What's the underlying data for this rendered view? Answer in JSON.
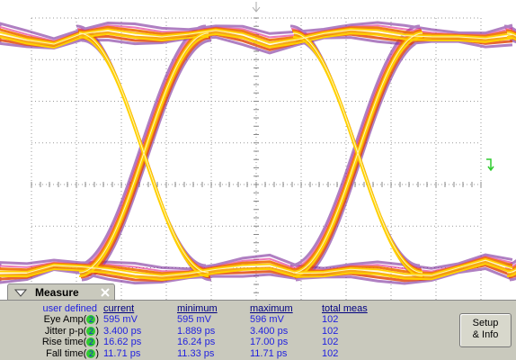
{
  "panel": {
    "title": "Measure",
    "columns": [
      "user defined",
      "current",
      "minimum",
      "maximum",
      "total meas"
    ],
    "rows": [
      {
        "label_prefix": "Eye Amp(",
        "channel": "2",
        "label_suffix": ")",
        "current": "595 mV",
        "minimum": "595 mV",
        "maximum": "596 mV",
        "total": 102
      },
      {
        "label_prefix": "Jitter p-p(",
        "channel": "2",
        "label_suffix": ")",
        "current": "3.400 ps",
        "minimum": "1.889 ps",
        "maximum": "3.400 ps",
        "total": 102
      },
      {
        "label_prefix": "Rise time(",
        "channel": "2",
        "label_suffix": ")",
        "current": "16.62 ps",
        "minimum": "16.24 ps",
        "maximum": "17.00 ps",
        "total": 102
      },
      {
        "label_prefix": "Fall time(",
        "channel": "2",
        "label_suffix": ")",
        "current": "11.71 ps",
        "minimum": "11.33 ps",
        "maximum": "11.71 ps",
        "total": 102
      }
    ],
    "button": [
      "Setup",
      "& Info"
    ]
  }
}
